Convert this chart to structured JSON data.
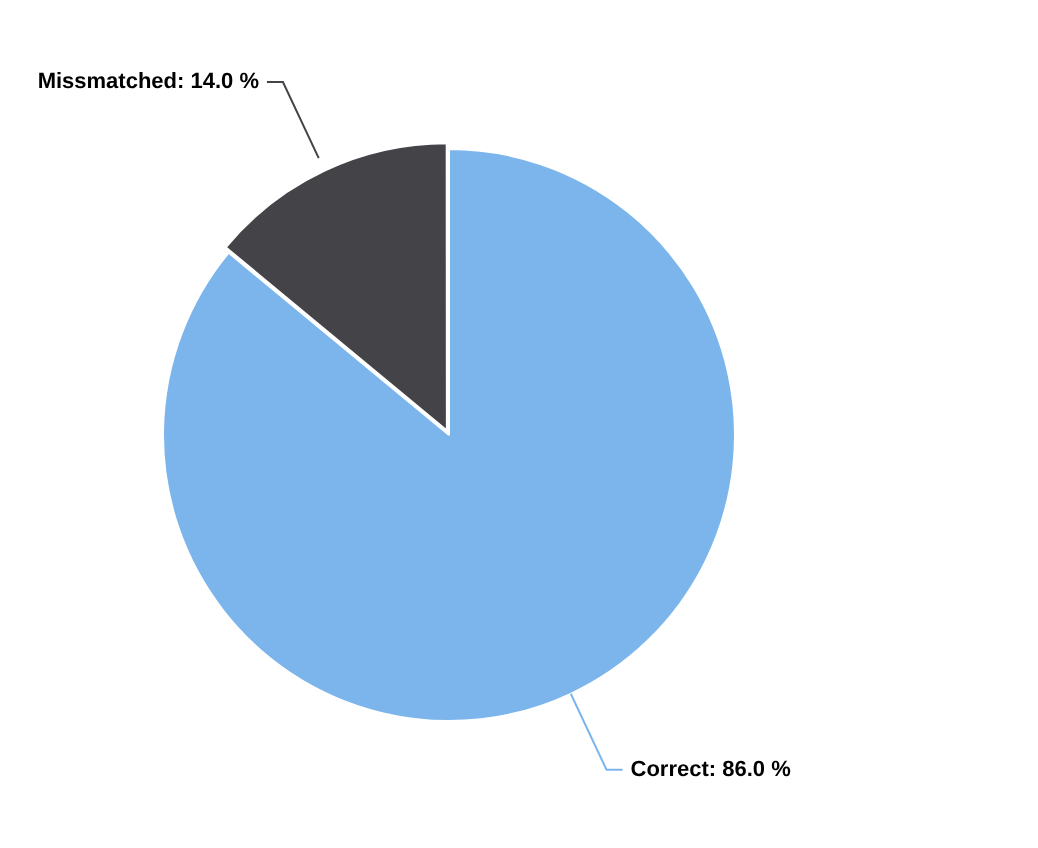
{
  "chart_data": {
    "type": "pie",
    "categories": [
      "Correct",
      "Missmatched"
    ],
    "values": [
      86.0,
      14.0
    ],
    "colors": [
      "#7cb5ec",
      "#434348"
    ],
    "value_labels": [
      "86.0 %",
      "14.0 %"
    ],
    "legend": false
  }
}
